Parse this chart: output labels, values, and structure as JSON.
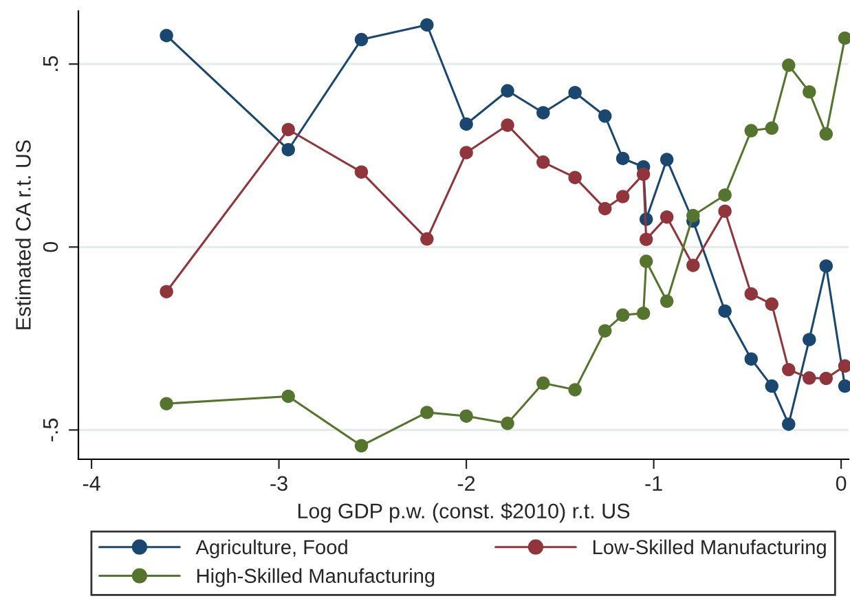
{
  "chart_data": {
    "type": "line",
    "xlabel": "Log GDP p.w. (const. $2010) r.t. US",
    "ylabel": "Estimated CA r.t. US",
    "x": [
      -3.6,
      -2.95,
      -2.56,
      -2.21,
      -2.0,
      -1.78,
      -1.59,
      -1.42,
      -1.26,
      -1.165,
      -1.055,
      -1.04,
      -0.93,
      -0.79,
      -0.62,
      -0.48,
      -0.37,
      -0.28,
      -0.17,
      -0.08,
      0.02
    ],
    "series": [
      {
        "name": "Agriculture, Food",
        "color": "#1a476f",
        "values": [
          0.578,
          0.266,
          0.567,
          0.607,
          0.336,
          0.427,
          0.367,
          0.422,
          0.358,
          0.242,
          0.219,
          0.076,
          0.239,
          0.071,
          -0.175,
          -0.306,
          -0.38,
          -0.484,
          -0.253,
          -0.052,
          -0.38
        ]
      },
      {
        "name": "Low-Skilled Manufacturing",
        "color": "#90353b",
        "values": [
          -0.122,
          0.321,
          0.205,
          0.022,
          0.258,
          0.333,
          0.232,
          0.19,
          0.105,
          0.138,
          0.199,
          0.021,
          0.082,
          -0.05,
          0.098,
          -0.128,
          -0.156,
          -0.335,
          -0.358,
          -0.359,
          -0.325
        ]
      },
      {
        "name": "High-Skilled Manufacturing",
        "color": "#55752f",
        "values": [
          -0.428,
          -0.408,
          -0.543,
          -0.452,
          -0.462,
          -0.482,
          -0.372,
          -0.39,
          -0.229,
          -0.186,
          -0.181,
          -0.039,
          -0.148,
          0.086,
          0.142,
          0.318,
          0.325,
          0.497,
          0.424,
          0.309,
          0.571
        ]
      }
    ],
    "xlim": [
      -4.07,
      0.04
    ],
    "xticks": [
      -4,
      -3,
      -2,
      -1,
      0
    ],
    "ylim": [
      -0.58,
      0.645
    ],
    "yticks": [
      {
        "value": -0.5,
        "label": "-.5"
      },
      0,
      {
        "value": 0.5,
        "label": ".5"
      }
    ],
    "grid": "y",
    "legend": "bottom",
    "marker": "circle",
    "line_style": "solid"
  }
}
